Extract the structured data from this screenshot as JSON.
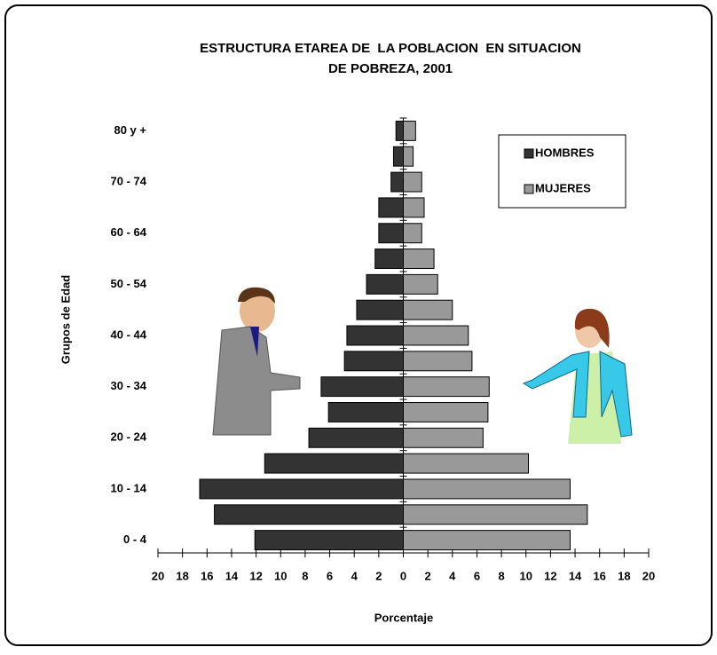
{
  "chart_data": {
    "type": "pyramid",
    "title": [
      "ESTRUCTURA ETAREA DE  LA POBLACION  EN SITUACION",
      "DE POBREZA, 2001"
    ],
    "x_label": "Porcentaje",
    "y_label": "Grupos de Edad",
    "categories": [
      "0 - 4",
      null,
      "10 - 14",
      null,
      "20 - 24",
      null,
      "30 - 34",
      null,
      "40 - 44",
      null,
      "50 - 54",
      null,
      "60 - 64",
      null,
      "70 - 74",
      null,
      "80 y +"
    ],
    "series": [
      {
        "name": "HOMBRES",
        "color": "#333333",
        "side": "left",
        "values": [
          12.1,
          15.4,
          16.6,
          11.3,
          7.7,
          6.1,
          6.7,
          4.8,
          4.6,
          3.8,
          3.0,
          2.3,
          2.0,
          2.0,
          1.0,
          0.8,
          0.6
        ]
      },
      {
        "name": "MUJERES",
        "color": "#999999",
        "side": "right",
        "values": [
          13.6,
          15.0,
          13.6,
          10.2,
          6.5,
          6.9,
          7.0,
          5.6,
          5.3,
          4.0,
          2.8,
          2.5,
          1.5,
          1.7,
          1.5,
          0.8,
          1.0
        ]
      }
    ],
    "xlim": [
      -20,
      20
    ],
    "xticks": [
      {
        "value": -20,
        "label": "20"
      },
      {
        "value": -18,
        "label": "18"
      },
      {
        "value": -16,
        "label": "16"
      },
      {
        "value": -14,
        "label": "14"
      },
      {
        "value": -12,
        "label": "12"
      },
      {
        "value": -10,
        "label": "10"
      },
      {
        "value": -8,
        "label": "8"
      },
      {
        "value": -6,
        "label": "6"
      },
      {
        "value": -4,
        "label": "4"
      },
      {
        "value": -2,
        "label": "2"
      },
      0,
      2,
      4,
      6,
      8,
      10,
      12,
      14,
      16,
      18,
      20
    ],
    "legend": "top-right"
  }
}
